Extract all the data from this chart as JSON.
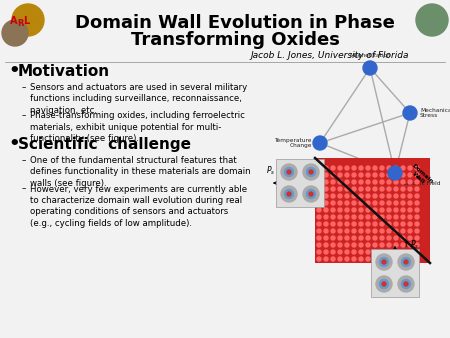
{
  "background_color": "#f2f2f2",
  "title_line1": "Domain Wall Evolution in Phase",
  "title_line2": "Transforming Oxides",
  "title_fontsize": 13,
  "title_color": "#000000",
  "subtitle": "Jacob L. Jones, University of Florida",
  "subtitle_fontsize": 6.5,
  "bullet1_header": "Motivation",
  "bullet1_header_fontsize": 11,
  "bullet1_items": [
    "Sensors and actuators are used in several military\nfunctions including surveillance, reconnaissance,\nnavigation, etc.",
    "Phase-transforming oxides, including ferroelectric\nmaterials, exhibit unique potential for multi-\nfunctionality (see figure)."
  ],
  "bullet2_header": "Scientific  challenge",
  "bullet2_header_fontsize": 11,
  "bullet2_items": [
    "One of the fundamental structural features that\ndefines functionality in these materials are domain\nwalls (see figure).",
    "However, very few experiments are currently able\nto characterize domain wall evolution during real\noperating conditions of sensors and actuators\n(e.g., cycling fields of low amplitude)."
  ],
  "item_fontsize": 6.2,
  "bullet_color": "#000000",
  "text_color": "#000000",
  "node_color": "#3366cc",
  "edge_color": "#999999",
  "red_domain_color": "#cc2222",
  "atom_outer_color": "#888888",
  "atom_inner_color": "#cc4444"
}
